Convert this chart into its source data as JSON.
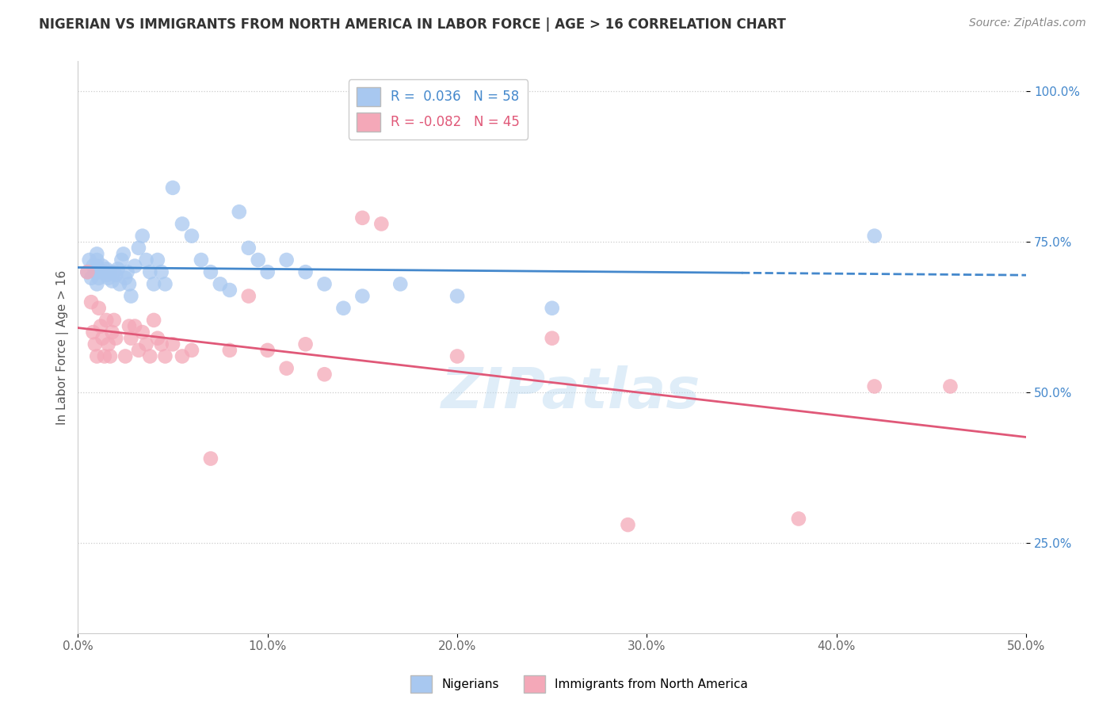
{
  "title": "NIGERIAN VS IMMIGRANTS FROM NORTH AMERICA IN LABOR FORCE | AGE > 16 CORRELATION CHART",
  "source": "Source: ZipAtlas.com",
  "ylabel": "In Labor Force | Age > 16",
  "xlim": [
    0.0,
    0.5
  ],
  "ylim": [
    0.1,
    1.05
  ],
  "blue_R": 0.036,
  "blue_N": 58,
  "pink_R": -0.082,
  "pink_N": 45,
  "blue_color": "#a8c8f0",
  "pink_color": "#f4a8b8",
  "blue_line_color": "#4488cc",
  "pink_line_color": "#e05878",
  "blue_scatter": [
    [
      0.005,
      0.7
    ],
    [
      0.006,
      0.72
    ],
    [
      0.007,
      0.69
    ],
    [
      0.008,
      0.71
    ],
    [
      0.009,
      0.7
    ],
    [
      0.01,
      0.68
    ],
    [
      0.01,
      0.7
    ],
    [
      0.01,
      0.71
    ],
    [
      0.01,
      0.72
    ],
    [
      0.01,
      0.73
    ],
    [
      0.011,
      0.69
    ],
    [
      0.012,
      0.7
    ],
    [
      0.013,
      0.71
    ],
    [
      0.014,
      0.7
    ],
    [
      0.015,
      0.695
    ],
    [
      0.015,
      0.705
    ],
    [
      0.016,
      0.69
    ],
    [
      0.017,
      0.7
    ],
    [
      0.018,
      0.685
    ],
    [
      0.019,
      0.7
    ],
    [
      0.02,
      0.695
    ],
    [
      0.021,
      0.705
    ],
    [
      0.022,
      0.68
    ],
    [
      0.023,
      0.72
    ],
    [
      0.024,
      0.73
    ],
    [
      0.025,
      0.69
    ],
    [
      0.026,
      0.7
    ],
    [
      0.027,
      0.68
    ],
    [
      0.028,
      0.66
    ],
    [
      0.03,
      0.71
    ],
    [
      0.032,
      0.74
    ],
    [
      0.034,
      0.76
    ],
    [
      0.036,
      0.72
    ],
    [
      0.038,
      0.7
    ],
    [
      0.04,
      0.68
    ],
    [
      0.042,
      0.72
    ],
    [
      0.044,
      0.7
    ],
    [
      0.046,
      0.68
    ],
    [
      0.05,
      0.84
    ],
    [
      0.055,
      0.78
    ],
    [
      0.06,
      0.76
    ],
    [
      0.065,
      0.72
    ],
    [
      0.07,
      0.7
    ],
    [
      0.075,
      0.68
    ],
    [
      0.08,
      0.67
    ],
    [
      0.085,
      0.8
    ],
    [
      0.09,
      0.74
    ],
    [
      0.095,
      0.72
    ],
    [
      0.1,
      0.7
    ],
    [
      0.11,
      0.72
    ],
    [
      0.12,
      0.7
    ],
    [
      0.13,
      0.68
    ],
    [
      0.14,
      0.64
    ],
    [
      0.15,
      0.66
    ],
    [
      0.17,
      0.68
    ],
    [
      0.2,
      0.66
    ],
    [
      0.25,
      0.64
    ],
    [
      0.42,
      0.76
    ]
  ],
  "pink_scatter": [
    [
      0.005,
      0.7
    ],
    [
      0.007,
      0.65
    ],
    [
      0.008,
      0.6
    ],
    [
      0.009,
      0.58
    ],
    [
      0.01,
      0.56
    ],
    [
      0.011,
      0.64
    ],
    [
      0.012,
      0.61
    ],
    [
      0.013,
      0.59
    ],
    [
      0.014,
      0.56
    ],
    [
      0.015,
      0.62
    ],
    [
      0.016,
      0.58
    ],
    [
      0.017,
      0.56
    ],
    [
      0.018,
      0.6
    ],
    [
      0.019,
      0.62
    ],
    [
      0.02,
      0.59
    ],
    [
      0.025,
      0.56
    ],
    [
      0.027,
      0.61
    ],
    [
      0.028,
      0.59
    ],
    [
      0.03,
      0.61
    ],
    [
      0.032,
      0.57
    ],
    [
      0.034,
      0.6
    ],
    [
      0.036,
      0.58
    ],
    [
      0.038,
      0.56
    ],
    [
      0.04,
      0.62
    ],
    [
      0.042,
      0.59
    ],
    [
      0.044,
      0.58
    ],
    [
      0.046,
      0.56
    ],
    [
      0.05,
      0.58
    ],
    [
      0.055,
      0.56
    ],
    [
      0.06,
      0.57
    ],
    [
      0.07,
      0.39
    ],
    [
      0.08,
      0.57
    ],
    [
      0.09,
      0.66
    ],
    [
      0.1,
      0.57
    ],
    [
      0.11,
      0.54
    ],
    [
      0.12,
      0.58
    ],
    [
      0.13,
      0.53
    ],
    [
      0.15,
      0.79
    ],
    [
      0.16,
      0.78
    ],
    [
      0.2,
      0.56
    ],
    [
      0.25,
      0.59
    ],
    [
      0.29,
      0.28
    ],
    [
      0.38,
      0.29
    ],
    [
      0.42,
      0.51
    ],
    [
      0.46,
      0.51
    ]
  ],
  "legend_label_blue": "Nigerians",
  "legend_label_pink": "Immigrants from North America",
  "grid_color": "#cccccc",
  "background_color": "#ffffff",
  "yticks": [
    0.25,
    0.5,
    0.75,
    1.0
  ],
  "ytick_labels": [
    "25.0%",
    "50.0%",
    "75.0%",
    "100.0%"
  ],
  "xticks": [
    0.0,
    0.1,
    0.2,
    0.3,
    0.4,
    0.5
  ],
  "xtick_labels": [
    "0.0%",
    "10.0%",
    "20.0%",
    "30.0%",
    "40.0%",
    "50.0%"
  ]
}
